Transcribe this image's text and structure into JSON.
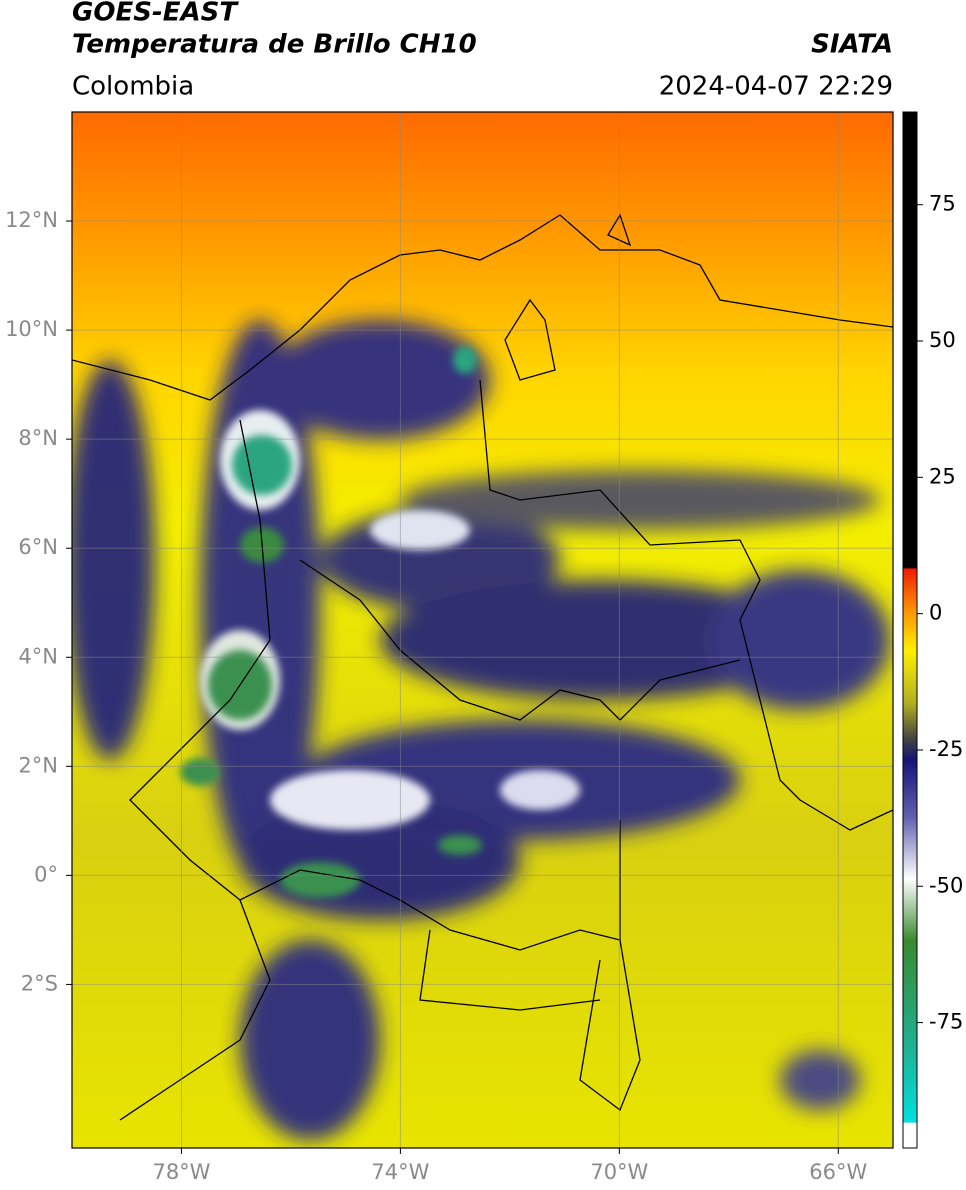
{
  "header": {
    "title": "GOES-EAST",
    "subtitle": "Temperatura de Brillo CH10",
    "source": "SIATA",
    "region": "Colombia",
    "datetime": "2024-04-07 22:29"
  },
  "map": {
    "xlim": [
      -80,
      -65
    ],
    "ylim": [
      -5,
      14
    ],
    "xticks": [
      {
        "value": -78,
        "label": "78°W"
      },
      {
        "value": -74,
        "label": "74°W"
      },
      {
        "value": -70,
        "label": "70°W"
      },
      {
        "value": -66,
        "label": "66°W"
      }
    ],
    "yticks": [
      {
        "value": 12,
        "label": "12°N"
      },
      {
        "value": 10,
        "label": "10°N"
      },
      {
        "value": 8,
        "label": "8°N"
      },
      {
        "value": 6,
        "label": "6°N"
      },
      {
        "value": 4,
        "label": "4°N"
      },
      {
        "value": 2,
        "label": "2°N"
      },
      {
        "value": 0,
        "label": "0°"
      },
      {
        "value": -2,
        "label": "2°S"
      }
    ],
    "grid": true
  },
  "colorbar": {
    "lim": [
      -98,
      92
    ],
    "ticks": [
      75,
      50,
      25,
      0,
      -25,
      -50,
      -75
    ]
  }
}
